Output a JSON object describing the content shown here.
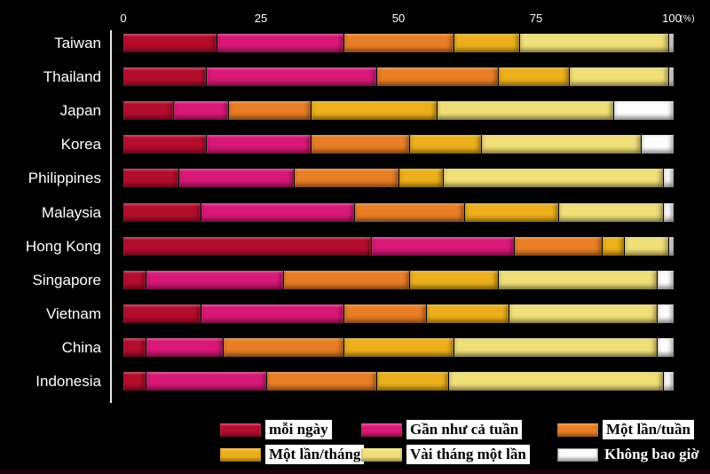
{
  "axis": {
    "unit_label": "(%)"
  },
  "chart_data": {
    "type": "bar",
    "orientation": "horizontal",
    "stacked": true,
    "grid": false,
    "legend_position": "bottom",
    "xlim": [
      0,
      100
    ],
    "xticks": [
      0,
      25,
      50,
      75,
      100
    ],
    "unit": "(%)",
    "categories": [
      "Taiwan",
      "Thailand",
      "Japan",
      "Korea",
      "Philippines",
      "Malaysia",
      "Hong Kong",
      "Singapore",
      "Vietnam",
      "China",
      "Indonesia"
    ],
    "series": [
      {
        "name": "mỗi ngày",
        "color": "#b50d2d",
        "values": [
          17,
          15,
          9,
          15,
          10,
          14,
          45,
          4,
          14,
          4,
          4
        ]
      },
      {
        "name": "Gần như cả tuần",
        "color": "#d91877",
        "values": [
          23,
          31,
          10,
          19,
          21,
          28,
          26,
          25,
          26,
          14,
          22
        ]
      },
      {
        "name": "Một lần/tuần",
        "color": "#e97e26",
        "values": [
          20,
          22,
          15,
          18,
          19,
          20,
          16,
          23,
          15,
          22,
          20
        ]
      },
      {
        "name": "Một lần/tháng",
        "color": "#edb01c",
        "values": [
          12,
          13,
          23,
          13,
          8,
          17,
          4,
          16,
          15,
          20,
          13
        ]
      },
      {
        "name": "Vài tháng một lần",
        "color": "#f1df78",
        "values": [
          27,
          18,
          32,
          29,
          40,
          19,
          8,
          29,
          27,
          37,
          39
        ]
      },
      {
        "name": "Không bao giờ",
        "color": "#ffffff",
        "values": [
          1,
          1,
          11,
          6,
          2,
          2,
          1,
          3,
          3,
          3,
          2
        ]
      }
    ]
  }
}
